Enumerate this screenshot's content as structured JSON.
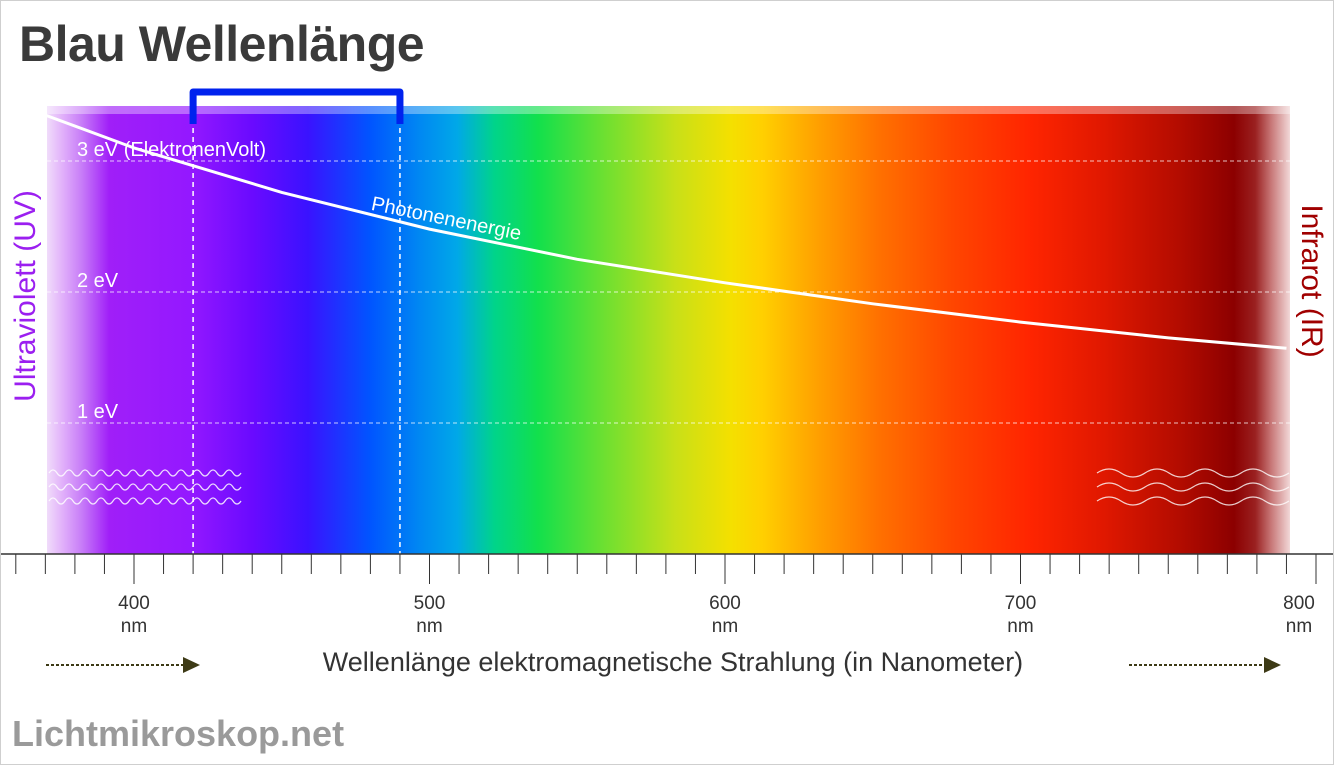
{
  "title": "Blau Wellenlänge",
  "brand": "Lichtmikroskop.net",
  "uv_label": "Ultraviolett (UV)",
  "ir_label": "Infrarot (IR)",
  "curve_label": "Photonenenergie",
  "axis_title": "Wellenlänge elektromagnetische Strahlung (in Nanometer)",
  "x_unit": "nm",
  "x_ticks": [
    "400",
    "500",
    "600",
    "700",
    "800"
  ],
  "energy_labels": [
    "3 eV (ElektronenVolt)",
    "2 eV",
    "1 eV"
  ],
  "colors": {
    "uv_text": "#9b1ff0",
    "ir_text": "#a00000",
    "highlight_bracket": "#0022ee",
    "arrow": "#3d3a16",
    "title_text": "#3a3a3a",
    "brand_text": "#9a9a9a"
  },
  "chart_data": {
    "type": "line",
    "xlim": [
      370,
      790
    ],
    "ylim": [
      0,
      3.4
    ],
    "highlight_range": [
      420,
      490
    ],
    "series": [
      {
        "name": "Photonenenergie",
        "x": [
          370,
          400,
          450,
          500,
          550,
          600,
          650,
          700,
          750,
          790
        ],
        "y": [
          3.35,
          3.1,
          2.76,
          2.48,
          2.25,
          2.07,
          1.91,
          1.77,
          1.65,
          1.57
        ]
      }
    ]
  }
}
